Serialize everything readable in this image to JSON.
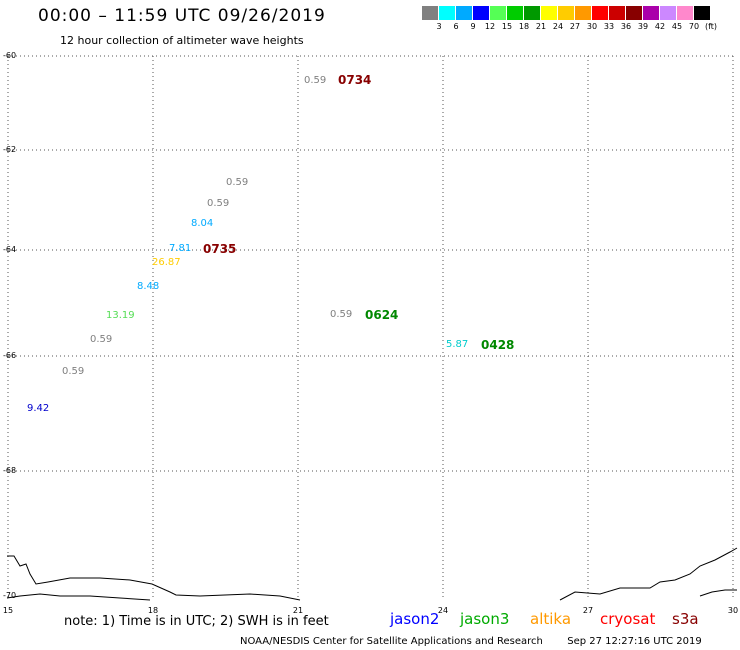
{
  "header": {
    "title": "00:00 – 11:59 UTC 09/26/2019",
    "subtitle": "12 hour collection of altimeter wave heights"
  },
  "legend": {
    "colors": [
      "#808080",
      "#00ffff",
      "#00aaff",
      "#0000ff",
      "#55ff55",
      "#00cc00",
      "#009900",
      "#ffff00",
      "#ffcc00",
      "#ff9900",
      "#ff0000",
      "#cc0000",
      "#880000",
      "#aa00aa",
      "#cc88ff",
      "#ff88cc",
      "#000000"
    ],
    "labels": [
      "3",
      "6",
      "9",
      "12",
      "15",
      "18",
      "21",
      "24",
      "27",
      "30",
      "33",
      "36",
      "39",
      "42",
      "45",
      "70",
      "(ft)"
    ]
  },
  "axes": {
    "lat_labels": [
      "-60",
      "-62",
      "-64",
      "-66",
      "-68",
      "-70"
    ],
    "lon_labels": [
      "15",
      "18",
      "21",
      "24",
      "27",
      "30"
    ]
  },
  "observations": [
    {
      "value": "0.59",
      "color": "#808080"
    },
    {
      "value": "0.59",
      "color": "#808080"
    },
    {
      "value": "0.59",
      "color": "#808080"
    },
    {
      "value": "8.04",
      "color": "#00aaff"
    },
    {
      "value": "7.81",
      "color": "#00aaff"
    },
    {
      "value": "26.87",
      "color": "#ffcc00"
    },
    {
      "value": "8.48",
      "color": "#00aaff"
    },
    {
      "value": "13.19",
      "color": "#55dd55"
    },
    {
      "value": "0.59",
      "color": "#808080"
    },
    {
      "value": "0.59",
      "color": "#808080"
    },
    {
      "value": "9.42",
      "color": "#0000cc"
    },
    {
      "value": "0.59",
      "color": "#808080"
    },
    {
      "value": "5.87",
      "color": "#00cccc"
    }
  ],
  "passes": [
    {
      "time": "0734",
      "color": "#880000"
    },
    {
      "time": "0735",
      "color": "#880000"
    },
    {
      "time": "0624",
      "color": "#008800"
    },
    {
      "time": "0428",
      "color": "#008800"
    }
  ],
  "footer": {
    "note": "note: 1) Time is in UTC; 2) SWH is in feet",
    "satellites": [
      {
        "name": "jason2",
        "color": "#0000ff"
      },
      {
        "name": "jason3",
        "color": "#00aa00"
      },
      {
        "name": "altika",
        "color": "#ff9900"
      },
      {
        "name": "cryosat",
        "color": "#ff0000"
      },
      {
        "name": "s3a",
        "color": "#880000"
      }
    ],
    "credit": "NOAA/NESDIS Center for Satellite Applications and Research",
    "timestamp": "Sep 27 12:27:16 UTC 2019"
  }
}
